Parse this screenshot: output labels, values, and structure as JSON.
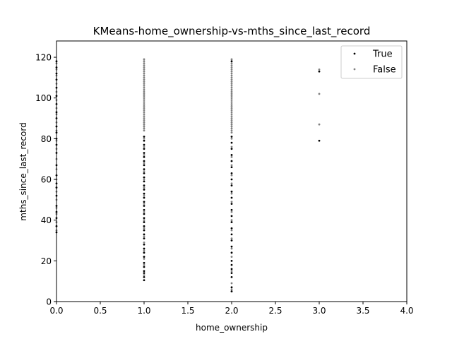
{
  "chart_data": {
    "type": "scatter",
    "title": "KMeans-home_ownership-vs-mths_since_last_record",
    "xlabel": "home_ownership",
    "ylabel": "mths_since_last_record",
    "xlim": [
      0.0,
      4.0
    ],
    "ylim": [
      0,
      128
    ],
    "x_ticks": [
      "0.0",
      "0.5",
      "1.0",
      "1.5",
      "2.0",
      "2.5",
      "3.0",
      "3.5",
      "4.0"
    ],
    "y_ticks": [
      "0",
      "20",
      "40",
      "60",
      "80",
      "100",
      "120"
    ],
    "grid": false,
    "legend_position": "top-right",
    "series": [
      {
        "name": "True",
        "color": "#000000",
        "points": [
          [
            0,
            34
          ],
          [
            0,
            37
          ],
          [
            0,
            41
          ],
          [
            0,
            44
          ],
          [
            0,
            47
          ],
          [
            0,
            52
          ],
          [
            0,
            56
          ],
          [
            0,
            58
          ],
          [
            0,
            62
          ],
          [
            0,
            67
          ],
          [
            0,
            73
          ],
          [
            0,
            77
          ],
          [
            0,
            80
          ],
          [
            0,
            83
          ],
          [
            0,
            86
          ],
          [
            0,
            90
          ],
          [
            0,
            93
          ],
          [
            0,
            97
          ],
          [
            0,
            101
          ],
          [
            0,
            105
          ],
          [
            0,
            109
          ],
          [
            0,
            112
          ],
          [
            0,
            115
          ],
          [
            0,
            118
          ],
          [
            1,
            10.5
          ],
          [
            1,
            12
          ],
          [
            1,
            14
          ],
          [
            1,
            15
          ],
          [
            1,
            17
          ],
          [
            1,
            19
          ],
          [
            1,
            22
          ],
          [
            1,
            24
          ],
          [
            1,
            26
          ],
          [
            1,
            28
          ],
          [
            1,
            31
          ],
          [
            1,
            33
          ],
          [
            1,
            35
          ],
          [
            1,
            37
          ],
          [
            1,
            39
          ],
          [
            1,
            41
          ],
          [
            1,
            43
          ],
          [
            1,
            45
          ],
          [
            1,
            47
          ],
          [
            1,
            49
          ],
          [
            1,
            51
          ],
          [
            1,
            53
          ],
          [
            1,
            55
          ],
          [
            1,
            57
          ],
          [
            1,
            59
          ],
          [
            1,
            61
          ],
          [
            1,
            63
          ],
          [
            1,
            65
          ],
          [
            1,
            67
          ],
          [
            1,
            69
          ],
          [
            1,
            71
          ],
          [
            1,
            73
          ],
          [
            1,
            75
          ],
          [
            1,
            77
          ],
          [
            1,
            79
          ],
          [
            1,
            81
          ],
          [
            2,
            5
          ],
          [
            2,
            7
          ],
          [
            2,
            12
          ],
          [
            2,
            14
          ],
          [
            2,
            16
          ],
          [
            2,
            18
          ],
          [
            2,
            20
          ],
          [
            2,
            24
          ],
          [
            2,
            27
          ],
          [
            2,
            30
          ],
          [
            2,
            33
          ],
          [
            2,
            36
          ],
          [
            2,
            39
          ],
          [
            2,
            42
          ],
          [
            2,
            45
          ],
          [
            2,
            48
          ],
          [
            2,
            51
          ],
          [
            2,
            54
          ],
          [
            2,
            57
          ],
          [
            2,
            60
          ],
          [
            2,
            63
          ],
          [
            2,
            66
          ],
          [
            2,
            69
          ],
          [
            2,
            72
          ],
          [
            2,
            75
          ],
          [
            2,
            78
          ],
          [
            2,
            81
          ],
          [
            2,
            118
          ],
          [
            3,
            79
          ],
          [
            3,
            113
          ]
        ]
      },
      {
        "name": "False",
        "color": "#808080",
        "points": [
          [
            0,
            35
          ],
          [
            0,
            39
          ],
          [
            0,
            43
          ],
          [
            0,
            46
          ],
          [
            0,
            50
          ],
          [
            0,
            54
          ],
          [
            0,
            60
          ],
          [
            0,
            65
          ],
          [
            0,
            70
          ],
          [
            0,
            75
          ],
          [
            0,
            79
          ],
          [
            0,
            84
          ],
          [
            0,
            88
          ],
          [
            0,
            92
          ],
          [
            0,
            95
          ],
          [
            0,
            99
          ],
          [
            0,
            103
          ],
          [
            0,
            107
          ],
          [
            0,
            111
          ],
          [
            0,
            114
          ],
          [
            0,
            117
          ],
          [
            1,
            13
          ],
          [
            1,
            18
          ],
          [
            1,
            21
          ],
          [
            1,
            25
          ],
          [
            1,
            29
          ],
          [
            1,
            32
          ],
          [
            1,
            36
          ],
          [
            1,
            40
          ],
          [
            1,
            44
          ],
          [
            1,
            48
          ],
          [
            1,
            52
          ],
          [
            1,
            56
          ],
          [
            1,
            60
          ],
          [
            1,
            64
          ],
          [
            1,
            68
          ],
          [
            1,
            72
          ],
          [
            1,
            76
          ],
          [
            1,
            80
          ],
          [
            1,
            84
          ],
          [
            1,
            85
          ],
          [
            1,
            86
          ],
          [
            1,
            87
          ],
          [
            1,
            88
          ],
          [
            1,
            89
          ],
          [
            1,
            90
          ],
          [
            1,
            91
          ],
          [
            1,
            92
          ],
          [
            1,
            93
          ],
          [
            1,
            94
          ],
          [
            1,
            95
          ],
          [
            1,
            96
          ],
          [
            1,
            97
          ],
          [
            1,
            98
          ],
          [
            1,
            99
          ],
          [
            1,
            100
          ],
          [
            1,
            101
          ],
          [
            1,
            102
          ],
          [
            1,
            103
          ],
          [
            1,
            104
          ],
          [
            1,
            105
          ],
          [
            1,
            106
          ],
          [
            1,
            107
          ],
          [
            1,
            108
          ],
          [
            1,
            109
          ],
          [
            1,
            110
          ],
          [
            1,
            111
          ],
          [
            1,
            112
          ],
          [
            1,
            113
          ],
          [
            1,
            114
          ],
          [
            1,
            115
          ],
          [
            1,
            116
          ],
          [
            1,
            117
          ],
          [
            1,
            118
          ],
          [
            1,
            119
          ],
          [
            2,
            6
          ],
          [
            2,
            9
          ],
          [
            2,
            15
          ],
          [
            2,
            22
          ],
          [
            2,
            26
          ],
          [
            2,
            31
          ],
          [
            2,
            35
          ],
          [
            2,
            40
          ],
          [
            2,
            44
          ],
          [
            2,
            49
          ],
          [
            2,
            53
          ],
          [
            2,
            58
          ],
          [
            2,
            62
          ],
          [
            2,
            67
          ],
          [
            2,
            71
          ],
          [
            2,
            76
          ],
          [
            2,
            80
          ],
          [
            2,
            83
          ],
          [
            2,
            84
          ],
          [
            2,
            85
          ],
          [
            2,
            86
          ],
          [
            2,
            87
          ],
          [
            2,
            88
          ],
          [
            2,
            89
          ],
          [
            2,
            90
          ],
          [
            2,
            91
          ],
          [
            2,
            92
          ],
          [
            2,
            93
          ],
          [
            2,
            94
          ],
          [
            2,
            95
          ],
          [
            2,
            96
          ],
          [
            2,
            97
          ],
          [
            2,
            98
          ],
          [
            2,
            99
          ],
          [
            2,
            100
          ],
          [
            2,
            101
          ],
          [
            2,
            102
          ],
          [
            2,
            103
          ],
          [
            2,
            104
          ],
          [
            2,
            105
          ],
          [
            2,
            106
          ],
          [
            2,
            107
          ],
          [
            2,
            108
          ],
          [
            2,
            109
          ],
          [
            2,
            110
          ],
          [
            2,
            111
          ],
          [
            2,
            112
          ],
          [
            2,
            113
          ],
          [
            2,
            114
          ],
          [
            2,
            115
          ],
          [
            2,
            116
          ],
          [
            2,
            117
          ],
          [
            2,
            119
          ],
          [
            3,
            87
          ],
          [
            3,
            102
          ],
          [
            3,
            114
          ]
        ]
      }
    ]
  }
}
